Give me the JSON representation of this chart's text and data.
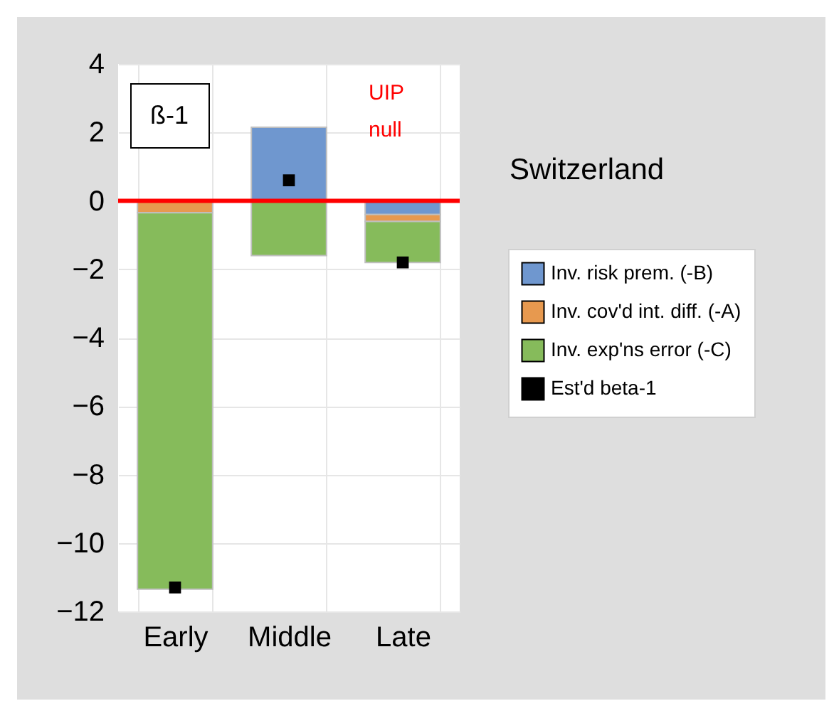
{
  "chart_data": {
    "type": "bar",
    "title": "Switzerland",
    "categories": [
      "Early",
      "Middle",
      "Late"
    ],
    "stacked": true,
    "series": [
      {
        "name": "Inv. risk prem. (-B)",
        "color": "#6f97cf",
        "values": [
          null,
          2.15,
          -0.4
        ]
      },
      {
        "name": "Inv. cov'd int. diff. (-A)",
        "color": "#e7994f",
        "values": [
          -0.35,
          null,
          -0.2
        ]
      },
      {
        "name": "Inv. exp'ns error (-C)",
        "color": "#86bb5b",
        "values": [
          -11,
          -1.6,
          -1.2
        ]
      },
      {
        "name": "Est'd beta-1",
        "type": "scatter",
        "color": "#000000",
        "x": [
          "Early",
          "Middle",
          "Late"
        ],
        "values": [
          -11.3,
          0.6,
          -1.8
        ]
      }
    ],
    "marker": "square",
    "ylim": [
      -12,
      4
    ],
    "yticks": [
      -12,
      -10,
      -8,
      -6,
      -4,
      -2,
      0,
      2,
      4
    ],
    "grid": true,
    "legend": "right",
    "ref_lines": [
      {
        "axis": "y",
        "value": 0,
        "label": "UIP null",
        "color": "#ff0000"
      }
    ],
    "annotations": [
      "ß-1"
    ]
  }
}
